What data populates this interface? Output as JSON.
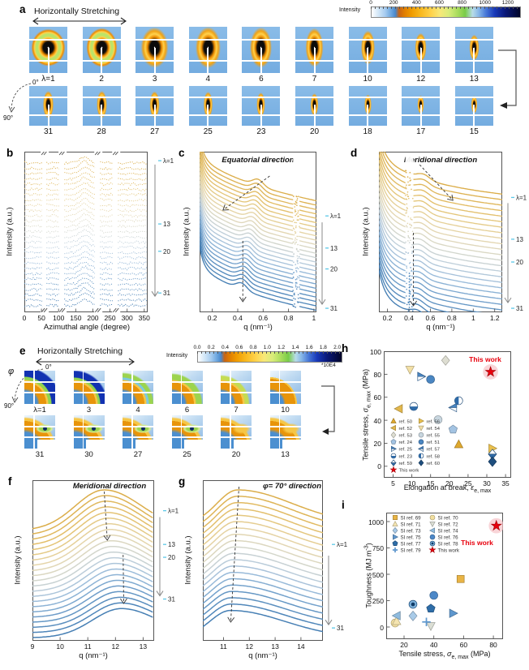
{
  "panels": {
    "a": {
      "label": "a",
      "stretch": "Horizontally Stretching",
      "colorbar": {
        "label": "Intensity",
        "ticks": [
          "0",
          "200",
          "400",
          "600",
          "800",
          "1000",
          "1200"
        ],
        "max": 1300
      },
      "angle": {
        "zero": "0°",
        "ninety": "90°"
      },
      "row1": [
        "λ=1",
        "2",
        "3",
        "4",
        "6",
        "7",
        "10",
        "12",
        "13"
      ],
      "row2": [
        "31",
        "28",
        "27",
        "25",
        "23",
        "20",
        "18",
        "17",
        "15"
      ]
    },
    "b": {
      "label": "b",
      "ylabel": "Intensity (a.u.)",
      "xlabel": "Azimuthal angle (degree)"
    },
    "c": {
      "label": "c",
      "title": "Equatorial direction",
      "ylabel": "Intensity (a.u.)",
      "xlabel": "q (nm⁻¹)"
    },
    "d": {
      "label": "d",
      "title": "Meridional direction",
      "ylabel": "Intensity (a.u.)",
      "xlabel": "q (nm⁻¹)"
    },
    "e": {
      "label": "e",
      "stretch": "Horizontally Stretching",
      "colorbar": {
        "label": "Intensity",
        "ticks": [
          "0.0",
          "0.2",
          "0.4",
          "0.6",
          "0.8",
          "1.0",
          "1.2",
          "1.4",
          "1.6",
          "1.8",
          "2.0"
        ],
        "scale": "*10E4",
        "max": 2.05
      },
      "angle": {
        "symbol": "φ",
        "zero": "0°",
        "ninety": "90°"
      },
      "row1": [
        "λ=1",
        "3",
        "4",
        "6",
        "7",
        "10"
      ],
      "row2": [
        "31",
        "30",
        "27",
        "25",
        "20",
        "13"
      ]
    },
    "f": {
      "label": "f",
      "title": "Meridional direction",
      "ylabel": "Intensity (a.u.)",
      "xlabel": "q (nm⁻¹)"
    },
    "g": {
      "label": "g",
      "title": "φ= 70° direction",
      "ylabel": "Intensity (a.u.)",
      "xlabel": "q (nm⁻¹)"
    },
    "h": {
      "label": "h",
      "highlight": "This work",
      "ylabel_pre": "Tensile stress, ",
      "ylabel_sym": "σ",
      "ylabel_sub": "e, max",
      "ylabel_post": " (MPa)",
      "xlabel_pre": "Elongation at break, ",
      "xlabel_sym": "ε",
      "xlabel_sub": "e, max"
    },
    "i": {
      "label": "i",
      "highlight": "This work",
      "ylabel_pre": "Toughness (MJ m",
      "ylabel_sup": "-3",
      "ylabel_post": ")",
      "xlabel_pre": "Tensile stress, ",
      "xlabel_sym": "σ",
      "xlabel_sub": "e, max",
      "xlabel_post": " (MPa)"
    }
  },
  "chart_data": [
    {
      "id": "b",
      "type": "line",
      "xlabel": "Azimuthal angle (degree)",
      "ylabel": "Intensity (a.u.)",
      "x_range": [
        0,
        360
      ],
      "xticks": [
        0,
        50,
        100,
        150,
        200,
        250,
        300,
        350
      ],
      "axis_breaks": [
        0.165,
        0.31,
        0.6,
        0.745
      ],
      "n_curves": 28,
      "lambda_annotations": [
        {
          "label": "λ=1",
          "pos": 0.056
        },
        {
          "label": "13",
          "pos": 0.45
        },
        {
          "label": "20",
          "pos": 0.62
        },
        {
          "label": "31",
          "pos": 0.88
        }
      ],
      "note": "stacked azimuthal intensity traces for stretch ratios λ=1→31, color yellow to blue, peak near 180°"
    },
    {
      "id": "c",
      "type": "line",
      "title": "Equatorial direction",
      "xlabel": "q (nm⁻¹)",
      "ylabel": "Intensity (a.u.)",
      "x_range": [
        0.1,
        1.02
      ],
      "xticks": [
        0.2,
        0.4,
        0.6,
        0.8,
        1.0
      ],
      "n_curves": 26,
      "gap_x": 0.87,
      "lambda_annotations": [
        {
          "label": "λ=1",
          "pos": 0.4
        },
        {
          "label": "13",
          "pos": 0.6
        },
        {
          "label": "20",
          "pos": 0.73
        },
        {
          "label": "31",
          "pos": 0.975
        }
      ],
      "note": "scattering shoulder shifts from q≈0.55 (λ=1) to q≈0.45 nm⁻¹ (λ=31)"
    },
    {
      "id": "d",
      "type": "line",
      "title": "Meridional direction",
      "xlabel": "q (nm⁻¹)",
      "ylabel": "Intensity (a.u.)",
      "x_range": [
        0.12,
        1.27
      ],
      "xticks": [
        0.2,
        0.4,
        0.6,
        0.8,
        1.0,
        1.2
      ],
      "n_curves": 26,
      "gap_x": 0.4,
      "lambda_annotations": [
        {
          "label": "λ=1",
          "pos": 0.285
        },
        {
          "label": "13",
          "pos": 0.545
        },
        {
          "label": "20",
          "pos": 0.687
        },
        {
          "label": "31",
          "pos": 0.975
        }
      ],
      "note": "meridional bump shifts toward lower q and sharpens with λ"
    },
    {
      "id": "f",
      "type": "line",
      "title": "Meridional direction",
      "xlabel": "q (nm⁻¹)",
      "ylabel": "Intensity (a.u.)",
      "x_range": [
        9,
        13.4
      ],
      "xticks": [
        9,
        10,
        11,
        12,
        13
      ],
      "n_curves": 22,
      "lambda_annotations": [
        {
          "label": "λ=1",
          "pos": 0.19
        },
        {
          "label": "13",
          "pos": 0.4
        },
        {
          "label": "20",
          "pos": 0.48
        },
        {
          "label": "31",
          "pos": 0.74
        }
      ],
      "note": "WAXS peak shifts from q≈11.6 (λ=1) to q≈12.25 nm⁻¹ (λ=31)"
    },
    {
      "id": "g",
      "type": "line",
      "title": "φ= 70° direction",
      "xlabel": "q (nm⁻¹)",
      "ylabel": "Intensity (a.u.)",
      "x_range": [
        10.2,
        14.85
      ],
      "xticks": [
        11,
        12,
        13,
        14
      ],
      "n_curves": 20,
      "lambda_annotations": [
        {
          "label": "λ=1",
          "pos": 0.4
        },
        {
          "label": "31",
          "pos": 0.92
        }
      ],
      "note": "peak shifts slightly from q≈11.55 to q≈11.3 nm⁻¹"
    },
    {
      "id": "h",
      "type": "scatter",
      "xlabel": "Elongation at break, εe, max",
      "ylabel": "Tensile stress, σe, max (MPa)",
      "x_range": [
        2.5,
        36.5
      ],
      "xticks": [
        5,
        10,
        15,
        20,
        25,
        30,
        35
      ],
      "y_range": [
        -10,
        100
      ],
      "yticks": [
        0,
        20,
        40,
        60,
        80,
        100
      ],
      "highlight_label": "This work",
      "points": [
        {
          "ref": "ref. 50",
          "shape": "triangle-up",
          "color": "#DFA92F",
          "x": 22.5,
          "y": 19
        },
        {
          "ref": "ref. 56",
          "shape": "triangle-right",
          "color": "#E9C04E",
          "x": 31.5,
          "y": 15.5
        },
        {
          "ref": "ref. 52",
          "shape": "triangle-left",
          "color": "#E3B84D",
          "x": 6.5,
          "y": 50
        },
        {
          "ref": "ref. 54",
          "shape": "triangle-down",
          "color": "#F3E0A6",
          "x": 9.5,
          "y": 84
        },
        {
          "ref": "ref. 53",
          "shape": "diamond",
          "color": "#DEDED2",
          "x": 19,
          "y": 92
        },
        {
          "ref": "ref. 55",
          "shape": "circle",
          "color": "#C8D6DF",
          "x": 17,
          "y": 40.5
        },
        {
          "ref": "ref. 24",
          "shape": "pentagon",
          "color": "#A3C3E2",
          "x": 21,
          "y": 32
        },
        {
          "ref": "ref. 51",
          "shape": "circle",
          "color": "#4A86C2",
          "x": 15,
          "y": 75.5
        },
        {
          "ref": "ref. 25",
          "shape": "triangle-right-half",
          "color": "#4A86C2",
          "x": 12.5,
          "y": 78
        },
        {
          "ref": "ref. 57",
          "shape": "triangle-left-half",
          "color": "#4A86C2",
          "x": 21,
          "y": 51
        },
        {
          "ref": "ref. 23",
          "shape": "circle-half",
          "color": "#2F6BA8",
          "x": 10.5,
          "y": 52
        },
        {
          "ref": "ref. 58",
          "shape": "circle-half2",
          "color": "#2F6BA8",
          "x": 22.5,
          "y": 57
        },
        {
          "ref": "ref. 59",
          "shape": "diamond-half",
          "color": "#2F6BA8",
          "x": 31.5,
          "y": 10.5
        },
        {
          "ref": "ref. 60",
          "shape": "diamond",
          "color": "#1E4E7E",
          "x": 31.5,
          "y": 4
        },
        {
          "ref": "This work",
          "shape": "star",
          "color": "#E8000D",
          "x": 31,
          "y": 82,
          "highlight": true
        }
      ]
    },
    {
      "id": "i",
      "type": "scatter",
      "xlabel": "Tensile stress, σe, max (MPa)",
      "ylabel": "Toughness (MJ m⁻³)",
      "x_range": [
        8,
        86.5
      ],
      "xticks": [
        20,
        40,
        60,
        80
      ],
      "y_range": [
        -115,
        1084
      ],
      "yticks": [
        0,
        250,
        500,
        750,
        1000
      ],
      "highlight_label": "This work",
      "points": [
        {
          "ref": "SI ref. 69",
          "shape": "square",
          "color": "#E9B445",
          "x": 58,
          "y": 455
        },
        {
          "ref": "SI ref. 70",
          "shape": "circle",
          "color": "#F2DFA0",
          "x": 14,
          "y": 38
        },
        {
          "ref": "SI ref. 71",
          "shape": "triangle-up",
          "color": "#F5E5B0",
          "x": 15,
          "y": 55
        },
        {
          "ref": "SI ref. 72",
          "shape": "triangle-down",
          "color": "#DBDED4",
          "x": 38,
          "y": 10
        },
        {
          "ref": "SI ref. 73",
          "shape": "diamond",
          "color": "#A9CBE8",
          "x": 26,
          "y": 105
        },
        {
          "ref": "SI ref. 74",
          "shape": "triangle-left",
          "color": "#8FBBDE",
          "x": 15,
          "y": 108
        },
        {
          "ref": "SI ref. 75",
          "shape": "triangle-right",
          "color": "#5E97CE",
          "x": 53,
          "y": 130
        },
        {
          "ref": "SI ref. 76",
          "shape": "circle",
          "color": "#4C88C8",
          "x": 40,
          "y": 300
        },
        {
          "ref": "SI ref. 77",
          "shape": "pentagon",
          "color": "#2E6DA8",
          "x": 38,
          "y": 175
        },
        {
          "ref": "SI ref. 78",
          "shape": "circle-dot",
          "color": "#2568A8",
          "x": 26,
          "y": 215
        },
        {
          "ref": "SI ref. 79",
          "shape": "plus",
          "color": "#5E97CE",
          "x": 35,
          "y": 48
        },
        {
          "ref": "This work",
          "shape": "star",
          "color": "#E8000D",
          "x": 82,
          "y": 960,
          "highlight": true
        }
      ]
    }
  ]
}
